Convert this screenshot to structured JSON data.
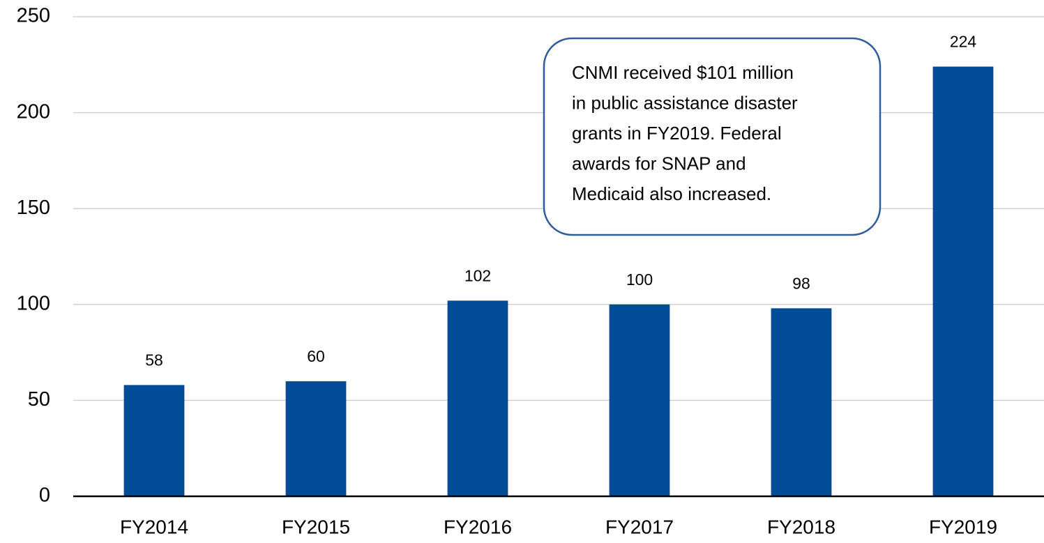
{
  "chart_data": {
    "type": "bar",
    "categories": [
      "FY2014",
      "FY2015",
      "FY2016",
      "FY2017",
      "FY2018",
      "FY2019"
    ],
    "values": [
      58,
      60,
      102,
      100,
      98,
      224
    ],
    "color": "#004c97",
    "ylim": [
      0,
      250
    ],
    "yticks": [
      0,
      50,
      100,
      150,
      200,
      250
    ],
    "grid": true,
    "annotation": [
      "CNMI received $101 million",
      "in public assistance disaster",
      "grants in FY2019. Federal",
      "awards for SNAP and",
      "Medicaid also increased."
    ]
  }
}
